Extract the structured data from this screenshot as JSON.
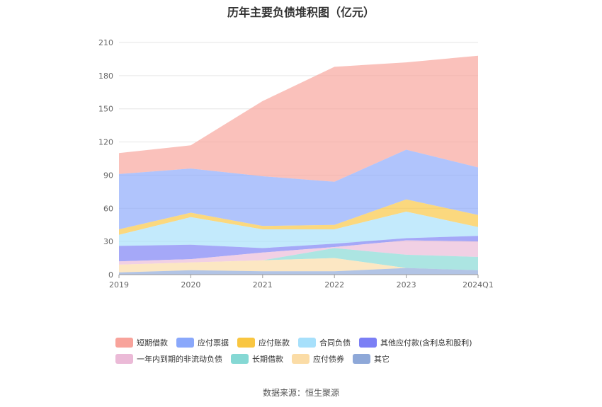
{
  "title": "历年主要负债堆积图（亿元）",
  "source": "数据来源：恒生聚源",
  "chart_data": {
    "type": "area",
    "stacked": true,
    "title": "历年主要负债堆积图（亿元）",
    "xlabel": "",
    "ylabel": "",
    "x": [
      "2019",
      "2020",
      "2021",
      "2022",
      "2023",
      "2024Q1"
    ],
    "ylim": [
      0,
      210
    ],
    "yticks": [
      0,
      30,
      60,
      90,
      120,
      150,
      180,
      210
    ],
    "grid": true,
    "legend_position": "bottom",
    "series": [
      {
        "name": "短期借款",
        "color": "#f8a39b",
        "values": [
          19,
          21,
          68,
          104,
          79,
          101
        ]
      },
      {
        "name": "应付票据",
        "color": "#8aa8fb",
        "values": [
          50,
          40,
          45,
          39,
          45,
          43
        ]
      },
      {
        "name": "应付账款",
        "color": "#f9c641",
        "values": [
          5,
          4,
          3,
          4,
          11,
          11
        ]
      },
      {
        "name": "合同负债",
        "color": "#a7e0fb",
        "values": [
          10,
          25,
          17,
          13,
          24,
          8
        ]
      },
      {
        "name": "其他应付款(含利息和股利)",
        "color": "#7b7ff5",
        "values": [
          14,
          13,
          4,
          3,
          2,
          5
        ]
      },
      {
        "name": "一年内到期的非流动负债",
        "color": "#ebbad7",
        "values": [
          3,
          3,
          7,
          1,
          13,
          14
        ]
      },
      {
        "name": "长期借款",
        "color": "#85d8d4",
        "values": [
          0,
          0,
          0,
          9,
          12,
          12
        ]
      },
      {
        "name": "应付债券",
        "color": "#fbdca6",
        "values": [
          7,
          7,
          10,
          12,
          0,
          0
        ]
      },
      {
        "name": "其它",
        "color": "#8ea8d8",
        "values": [
          2,
          4,
          3,
          3,
          6,
          4
        ]
      }
    ]
  }
}
